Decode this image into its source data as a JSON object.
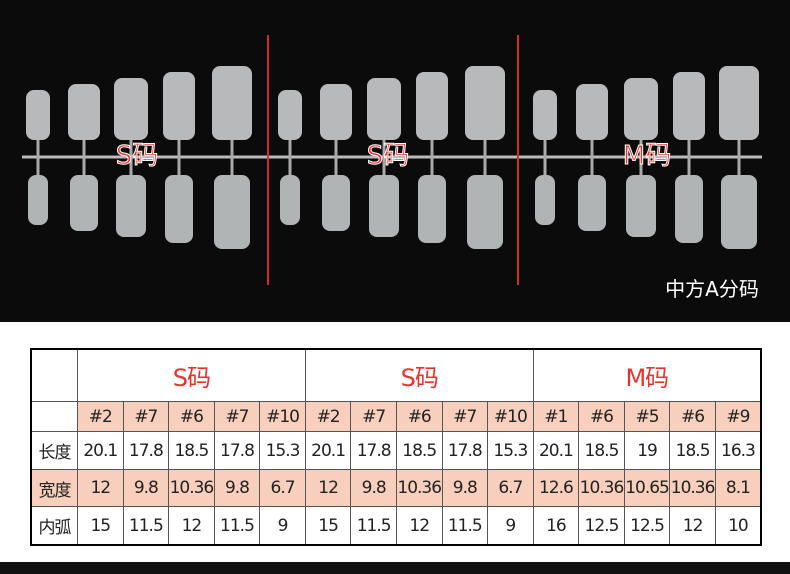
{
  "photo": {
    "groups": [
      {
        "label": "S码"
      },
      {
        "label": "S码"
      },
      {
        "label": "M码"
      }
    ],
    "caption": "中方A分码"
  },
  "table": {
    "groups": [
      "S码",
      "S码",
      "M码"
    ],
    "sizes": [
      "#2",
      "#7",
      "#6",
      "#7",
      "#10",
      "#2",
      "#7",
      "#6",
      "#7",
      "#10",
      "#1",
      "#6",
      "#5",
      "#6",
      "#9"
    ],
    "rows": [
      {
        "label": "长度",
        "values": [
          20.1,
          17.8,
          18.5,
          17.8,
          15.3,
          20.1,
          17.8,
          18.5,
          17.8,
          15.3,
          20.1,
          18.5,
          19,
          18.5,
          16.3
        ]
      },
      {
        "label": "宽度",
        "values": [
          12,
          9.8,
          10.36,
          9.8,
          6.7,
          12,
          9.8,
          10.36,
          9.8,
          6.7,
          12.6,
          10.36,
          10.65,
          10.36,
          8.1
        ]
      },
      {
        "label": "内弧",
        "values": [
          15,
          11.5,
          12,
          11.5,
          9,
          15,
          11.5,
          12,
          11.5,
          9,
          16,
          12.5,
          12.5,
          12,
          10
        ]
      }
    ]
  }
}
